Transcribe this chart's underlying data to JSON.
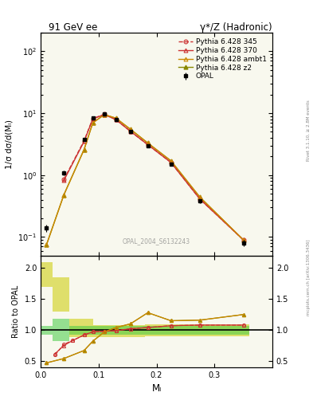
{
  "title_left": "91 GeV ee",
  "title_right": "γ*/Z (Hadronic)",
  "ylabel_main": "1/σ dσ/d(Mₗ)",
  "ylabel_ratio": "Ratio to OPAL",
  "xlabel": "Mₗ",
  "watermark": "OPAL_2004_S6132243",
  "rivet_label": "Rivet 3.1.10, ≥ 2.8M events",
  "mcplots_label": "mcplots.cern.ch [arXiv:1306.3436]",
  "x_data": [
    0.01,
    0.025,
    0.04,
    0.055,
    0.075,
    0.09,
    0.11,
    0.13,
    0.155,
    0.185,
    0.225,
    0.275,
    0.35
  ],
  "opal_y": [
    0.14,
    null,
    1.1,
    null,
    3.8,
    8.5,
    9.8,
    8.0,
    5.0,
    3.0,
    1.5,
    0.38,
    0.08
  ],
  "opal_yerr": [
    0.02,
    null,
    0.1,
    null,
    0.2,
    0.3,
    0.3,
    0.3,
    0.2,
    0.15,
    0.08,
    0.03,
    0.01
  ],
  "p345_y": [
    null,
    null,
    0.85,
    null,
    3.6,
    8.2,
    9.6,
    7.9,
    5.1,
    3.1,
    1.6,
    0.41,
    0.09
  ],
  "p370_y": [
    null,
    null,
    0.82,
    null,
    3.5,
    8.1,
    9.5,
    7.85,
    5.1,
    3.1,
    1.6,
    0.41,
    0.09
  ],
  "pambt1_y": [
    0.075,
    null,
    0.48,
    null,
    2.6,
    7.0,
    9.5,
    8.3,
    5.5,
    3.3,
    1.7,
    0.44,
    0.09
  ],
  "pambt2_y": [
    0.075,
    null,
    0.48,
    null,
    2.6,
    7.0,
    9.5,
    8.3,
    5.5,
    3.3,
    1.7,
    0.44,
    0.09
  ],
  "ratio_x": [
    0.01,
    0.025,
    0.04,
    0.055,
    0.075,
    0.09,
    0.11,
    0.13,
    0.155,
    0.185,
    0.225,
    0.275,
    0.35
  ],
  "ratio_p345": [
    null,
    0.6,
    0.77,
    0.83,
    0.92,
    0.97,
    0.98,
    0.99,
    1.02,
    1.04,
    1.07,
    1.08,
    1.08
  ],
  "ratio_p370": [
    null,
    0.62,
    0.75,
    0.83,
    0.92,
    0.97,
    0.98,
    0.99,
    1.02,
    1.04,
    1.07,
    1.08,
    1.08
  ],
  "ratio_pambt1": [
    0.47,
    null,
    0.54,
    null,
    0.67,
    0.82,
    0.97,
    1.04,
    1.1,
    1.28,
    1.15,
    1.16,
    1.25
  ],
  "ratio_pambt2": [
    0.47,
    null,
    0.54,
    null,
    0.67,
    0.82,
    0.97,
    1.04,
    1.1,
    1.28,
    1.15,
    1.16,
    1.25
  ],
  "band_bins": [
    [
      0.0,
      0.02,
      1.7,
      2.1,
      0.93,
      1.07
    ],
    [
      0.02,
      0.05,
      1.3,
      1.85,
      0.82,
      1.18
    ],
    [
      0.05,
      0.09,
      0.88,
      1.18,
      0.93,
      1.07
    ],
    [
      0.09,
      0.18,
      0.88,
      1.08,
      0.93,
      1.07
    ],
    [
      0.18,
      0.27,
      0.9,
      1.09,
      0.93,
      1.07
    ],
    [
      0.27,
      0.36,
      0.9,
      1.09,
      0.93,
      1.07
    ]
  ],
  "color_opal": "#000000",
  "color_p345": "#cc3333",
  "color_p370": "#cc3333",
  "color_pambt1": "#cc8800",
  "color_pambt2": "#888800",
  "bg_color": "#f8f8ee",
  "ylim_main": [
    0.05,
    200
  ],
  "ylim_ratio": [
    0.4,
    2.2
  ],
  "xlim": [
    0.0,
    0.4
  ]
}
